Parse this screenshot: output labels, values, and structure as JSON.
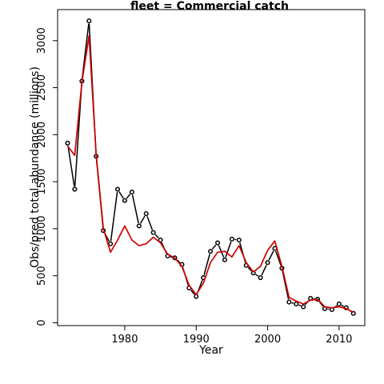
{
  "chart_data": {
    "type": "line",
    "title": "fleet =  Commercial catch",
    "xlabel": "Year",
    "ylabel": "Obs/pred total abundance (millions)",
    "xlim": [
      1970.6,
      2013.6
    ],
    "ylim": [
      -30,
      3330
    ],
    "x_ticks": [
      1980,
      1990,
      2000,
      2010
    ],
    "y_ticks": [
      0,
      500,
      1000,
      1500,
      2000,
      2500,
      3000
    ],
    "grid": false,
    "x": [
      1972,
      1973,
      1974,
      1975,
      1976,
      1977,
      1978,
      1979,
      1980,
      1981,
      1982,
      1983,
      1984,
      1985,
      1986,
      1987,
      1988,
      1989,
      1990,
      1991,
      1992,
      1993,
      1994,
      1995,
      1996,
      1997,
      1998,
      1999,
      2000,
      2001,
      2002,
      2003,
      2004,
      2005,
      2006,
      2007,
      2008,
      2009,
      2010,
      2011,
      2012
    ],
    "series": [
      {
        "role": "observed",
        "style": "black line with open circles",
        "color": "#000000",
        "values": [
          1910,
          1420,
          2570,
          3210,
          1770,
          980,
          840,
          1420,
          1300,
          1390,
          1030,
          1160,
          960,
          880,
          710,
          690,
          620,
          370,
          280,
          480,
          760,
          850,
          670,
          890,
          880,
          610,
          530,
          480,
          640,
          790,
          580,
          220,
          200,
          170,
          260,
          250,
          150,
          140,
          200,
          160,
          100
        ]
      },
      {
        "role": "predicted",
        "style": "red line",
        "color": "#cc0000",
        "values": [
          1880,
          1780,
          2560,
          3050,
          1790,
          1000,
          750,
          880,
          1030,
          880,
          820,
          840,
          910,
          850,
          730,
          690,
          600,
          400,
          300,
          420,
          640,
          750,
          760,
          700,
          820,
          640,
          540,
          600,
          770,
          870,
          600,
          270,
          230,
          200,
          240,
          250,
          170,
          160,
          170,
          150,
          110
        ]
      }
    ]
  }
}
